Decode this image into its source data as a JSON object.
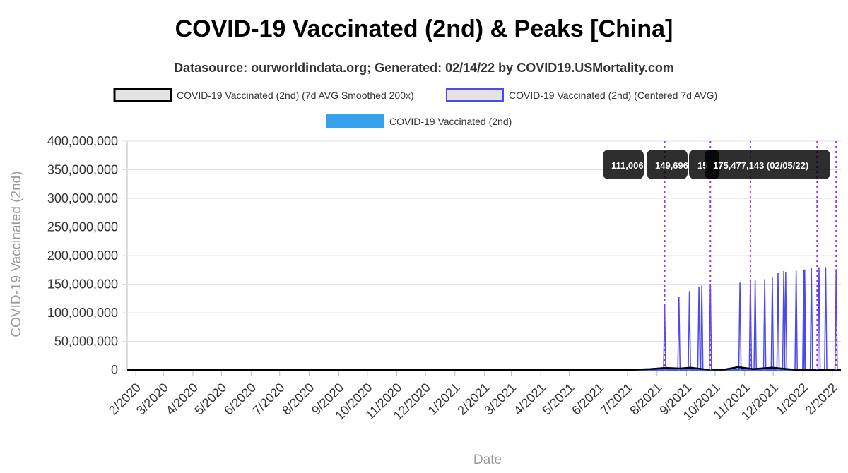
{
  "title": "COVID-19 Vaccinated (2nd) & Peaks [China]",
  "subtitle": "Datasource: ourworldindata.org; Generated: 02/14/22 by COVID19.USMortality.com",
  "colors": {
    "smoothed": "#000000",
    "centered": "#4a4af0",
    "raw": "#36a2eb",
    "peak_line": "#9b30ff",
    "grid": "#e0e0e0",
    "tooltip_bg": "#000000"
  },
  "chart_data": {
    "type": "line",
    "title": "COVID-19 Vaccinated (2nd) & Peaks [China]",
    "subtitle": "Datasource: ourworldindata.org; Generated: 02/14/22 by COVID19.USMortality.com",
    "xlabel": "Date",
    "ylabel": "COVID-19 Vaccinated (2nd)",
    "ylim": [
      0,
      400000000
    ],
    "grid": true,
    "legend_placement": "top",
    "y_ticks": [
      "0",
      "50,000,000",
      "100,000,000",
      "150,000,000",
      "200,000,000",
      "250,000,000",
      "300,000,000",
      "350,000,000",
      "400,000,000"
    ],
    "x_ticks": [
      "2/2020",
      "3/2020",
      "4/2020",
      "5/2020",
      "6/2020",
      "7/2020",
      "8/2020",
      "9/2020",
      "10/2020",
      "11/2020",
      "12/2020",
      "1/2021",
      "2/2021",
      "3/2021",
      "4/2021",
      "5/2021",
      "6/2021",
      "7/2021",
      "8/2021",
      "9/2021",
      "10/2021",
      "11/2021",
      "12/2021",
      "1/2022",
      "2/2022"
    ],
    "legend": [
      {
        "name": "COVID-19 Vaccinated (2nd) (7d AVG Smoothed 200x)",
        "style": "smoothed"
      },
      {
        "name": "COVID-19 Vaccinated (2nd) (Centered 7d AVG)",
        "style": "centered"
      },
      {
        "name": "COVID-19 Vaccinated (2nd)",
        "style": "raw"
      }
    ],
    "series": [
      {
        "name": "COVID-19 Vaccinated (2nd) (Centered 7d AVG)",
        "spikes": [
          {
            "date": "2021-08-09",
            "value": 111006000
          },
          {
            "date": "2021-08-24",
            "value": 127000000
          },
          {
            "date": "2021-09-04",
            "value": 137000000
          },
          {
            "date": "2021-09-14",
            "value": 145000000
          },
          {
            "date": "2021-09-17",
            "value": 147000000
          },
          {
            "date": "2021-09-26",
            "value": 149696000
          },
          {
            "date": "2021-10-27",
            "value": 152000000
          },
          {
            "date": "2021-11-07",
            "value": 157000000
          },
          {
            "date": "2021-11-12",
            "value": 156000000
          },
          {
            "date": "2021-11-22",
            "value": 158000000
          },
          {
            "date": "2021-11-30",
            "value": 161000000
          },
          {
            "date": "2021-12-06",
            "value": 169000000
          },
          {
            "date": "2021-12-12",
            "value": 172000000
          },
          {
            "date": "2021-12-14",
            "value": 171000000
          },
          {
            "date": "2021-12-25",
            "value": 173000000
          },
          {
            "date": "2022-01-02",
            "value": 174000000
          },
          {
            "date": "2022-01-03",
            "value": 175000000
          },
          {
            "date": "2022-01-10",
            "value": 178000000
          },
          {
            "date": "2022-01-18",
            "value": 179000000
          },
          {
            "date": "2022-01-25",
            "value": 179000000
          },
          {
            "date": "2022-02-05",
            "value": 175477143
          }
        ]
      },
      {
        "name": "COVID-19 Vaccinated (2nd) (7d AVG Smoothed 200x)",
        "points": [
          {
            "date": "2020-01-23",
            "value": 0
          },
          {
            "date": "2021-07-01",
            "value": 0
          },
          {
            "date": "2021-07-25",
            "value": 1500000
          },
          {
            "date": "2021-08-10",
            "value": 3500000
          },
          {
            "date": "2021-08-25",
            "value": 2500000
          },
          {
            "date": "2021-09-05",
            "value": 4000000
          },
          {
            "date": "2021-09-20",
            "value": 1000000
          },
          {
            "date": "2021-10-10",
            "value": 500000
          },
          {
            "date": "2021-10-25",
            "value": 5000000
          },
          {
            "date": "2021-11-10",
            "value": 1500000
          },
          {
            "date": "2021-11-30",
            "value": 4000000
          },
          {
            "date": "2021-12-12",
            "value": 2000000
          },
          {
            "date": "2021-12-25",
            "value": 300000
          },
          {
            "date": "2022-02-10",
            "value": 0
          }
        ]
      },
      {
        "name": "COVID-19 Vaccinated (2nd)",
        "points": [
          {
            "date": "2020-01-23",
            "value": 0
          },
          {
            "date": "2022-02-10",
            "value": 0
          }
        ]
      }
    ],
    "peaks": [
      {
        "date": "2021-08-09",
        "label": "111,006,"
      },
      {
        "date": "2021-09-26",
        "label": "149,696"
      },
      {
        "date": "2021-11-07",
        "label": "15"
      },
      {
        "date": "2022-01-16",
        "label": ""
      },
      {
        "date": "2022-02-05",
        "label": "175,477,143 (02/05/22)"
      }
    ]
  }
}
